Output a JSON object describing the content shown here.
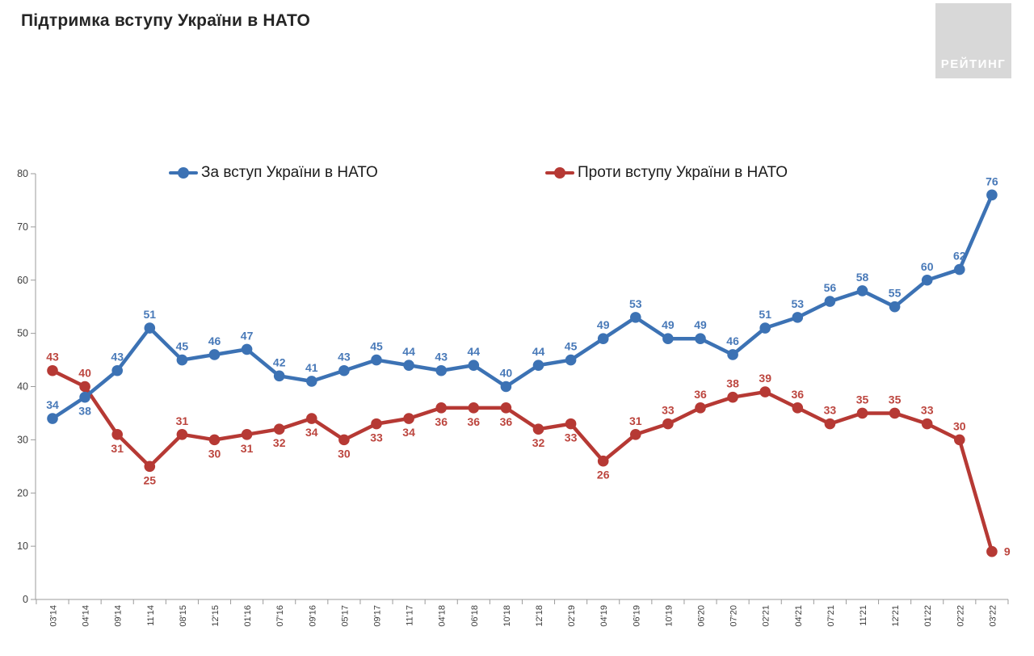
{
  "header": {
    "title": "Підтримка вступу України в НАТО",
    "logo_text": "РЕЙТИНГ"
  },
  "chart_data": {
    "type": "line",
    "title": "Підтримка вступу України в НАТО",
    "grid": false,
    "legend_position": "top-center",
    "ylim": [
      0,
      80
    ],
    "yticks": [
      0,
      10,
      20,
      30,
      40,
      50,
      60,
      70,
      80
    ],
    "axis_color": "#9b9b9b",
    "tick_label_color": "#3d3d3d",
    "categories": [
      "03'14",
      "04'14",
      "09'14",
      "11'14",
      "08'15",
      "12'15",
      "01'16",
      "07'16",
      "09'16",
      "05'17",
      "09'17",
      "11'17",
      "04'18",
      "06'18",
      "10'18",
      "12'18",
      "02'19",
      "04'19",
      "06'19",
      "10'19",
      "06'20",
      "07'20",
      "02'21",
      "04'21",
      "07'21",
      "11'21",
      "12'21",
      "01'22",
      "02'22",
      "03'22"
    ],
    "series": [
      {
        "name": "За вступ України в НАТО",
        "color": "#3c72b4",
        "label_color": "#4879b8",
        "values": [
          34,
          38,
          43,
          51,
          45,
          46,
          47,
          42,
          41,
          43,
          45,
          44,
          43,
          44,
          40,
          44,
          45,
          49,
          53,
          49,
          49,
          46,
          51,
          53,
          56,
          58,
          55,
          60,
          62,
          76
        ],
        "label_placement": [
          "above",
          "below",
          "above",
          "above",
          "above",
          "above",
          "above",
          "above",
          "above",
          "above",
          "above",
          "above",
          "above",
          "above",
          "above",
          "above",
          "above",
          "above",
          "above",
          "above",
          "above",
          "above",
          "above",
          "above",
          "above",
          "above",
          "above",
          "above",
          "above",
          "above"
        ]
      },
      {
        "name": "Проти вступу України в НАТО",
        "color": "#b63934",
        "label_color": "#bc453e",
        "values": [
          43,
          40,
          31,
          25,
          31,
          30,
          31,
          32,
          34,
          30,
          33,
          34,
          36,
          36,
          36,
          32,
          33,
          26,
          31,
          33,
          36,
          38,
          39,
          36,
          33,
          35,
          35,
          33,
          30,
          9
        ],
        "label_placement": [
          "above",
          "above",
          "below",
          "below",
          "above",
          "below",
          "below",
          "below",
          "below",
          "below",
          "below",
          "below",
          "below",
          "below",
          "below",
          "below",
          "below",
          "below",
          "above",
          "above",
          "above",
          "above",
          "above",
          "above",
          "above",
          "above",
          "above",
          "above",
          "above",
          "right"
        ]
      }
    ]
  }
}
